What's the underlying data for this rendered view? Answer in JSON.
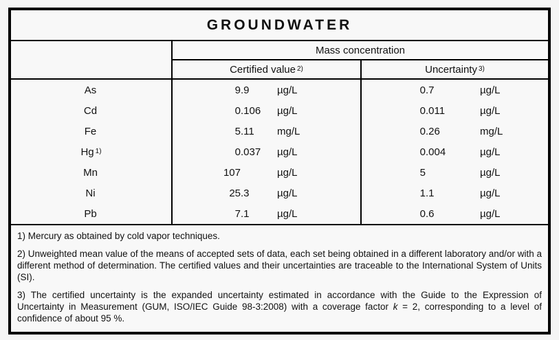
{
  "title": "GROUNDWATER",
  "table": {
    "group_header": "Mass concentration",
    "columns": [
      {
        "label": "Certified value",
        "sup": "2)"
      },
      {
        "label": "Uncertainty",
        "sup": "3)"
      }
    ],
    "rows": [
      {
        "element": "As",
        "sup": "",
        "certified": {
          "int": "9",
          "frac": ".9",
          "unit": "µg/L"
        },
        "uncertainty": {
          "int": "0",
          "frac": ".7",
          "unit": "µg/L"
        }
      },
      {
        "element": "Cd",
        "sup": "",
        "certified": {
          "int": "0",
          "frac": ".106",
          "unit": "µg/L"
        },
        "uncertainty": {
          "int": "0",
          "frac": ".011",
          "unit": "µg/L"
        }
      },
      {
        "element": "Fe",
        "sup": "",
        "certified": {
          "int": "5",
          "frac": ".11",
          "unit": "mg/L"
        },
        "uncertainty": {
          "int": "0",
          "frac": ".26",
          "unit": "mg/L"
        }
      },
      {
        "element": "Hg",
        "sup": "1)",
        "certified": {
          "int": "0",
          "frac": ".037",
          "unit": "µg/L"
        },
        "uncertainty": {
          "int": "0",
          "frac": ".004",
          "unit": "µg/L"
        }
      },
      {
        "element": "Mn",
        "sup": "",
        "certified": {
          "int": "107",
          "frac": "",
          "unit": "µg/L"
        },
        "uncertainty": {
          "int": "5",
          "frac": "",
          "unit": "µg/L"
        }
      },
      {
        "element": "Ni",
        "sup": "",
        "certified": {
          "int": "25",
          "frac": ".3",
          "unit": "µg/L"
        },
        "uncertainty": {
          "int": "1",
          "frac": ".1",
          "unit": "µg/L"
        }
      },
      {
        "element": "Pb",
        "sup": "",
        "certified": {
          "int": "7",
          "frac": ".1",
          "unit": "µg/L"
        },
        "uncertainty": {
          "int": "0",
          "frac": ".6",
          "unit": "µg/L"
        }
      }
    ]
  },
  "footnotes": {
    "fn1": "1) Mercury as obtained by cold vapor techniques.",
    "fn2": "2) Unweighted mean value of the means of accepted sets of data, each set being obtained in a different laboratory and/or with a different method of determination. The certified values and their uncertainties are traceable to the International System of Units (SI).",
    "fn3_pre": "3) The certified uncertainty is the expanded uncertainty estimated in accordance with the Guide to the Expression of Uncertainty in Measurement (GUM, ISO/IEC Guide 98-3:2008) with a coverage factor ",
    "fn3_k": "k",
    "fn3_post": " = 2, corresponding to a level of confidence of about 95 %."
  }
}
